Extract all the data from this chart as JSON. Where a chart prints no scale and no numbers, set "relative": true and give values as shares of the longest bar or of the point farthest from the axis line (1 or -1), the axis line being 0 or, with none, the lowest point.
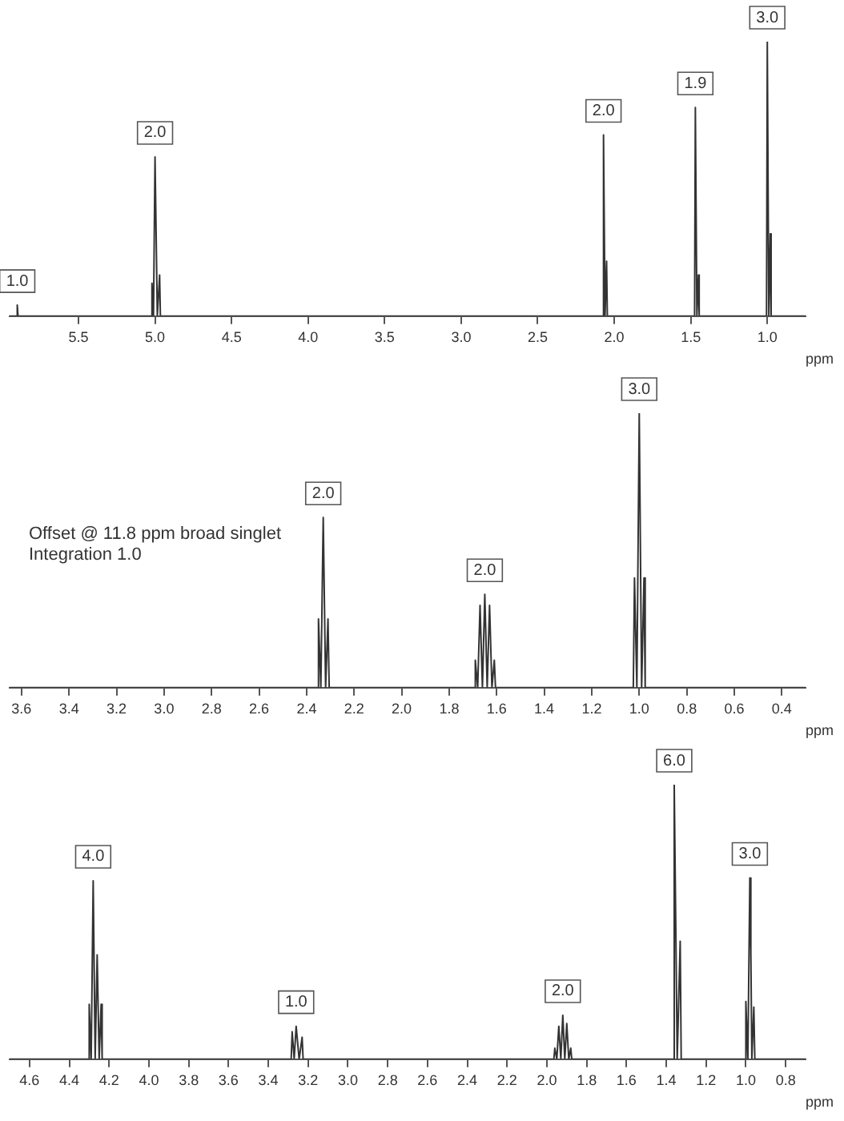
{
  "chart_data": [
    {
      "type": "line",
      "relative": true,
      "xlabel": "ppm",
      "xlim": [
        5.95,
        0.75
      ],
      "xticks": [
        5.5,
        {
          "value": 5,
          "label": "5.0"
        },
        4.5,
        {
          "value": 4,
          "label": "4.0"
        },
        3.5,
        {
          "value": 3,
          "label": "3.0"
        },
        2.5,
        {
          "value": 2,
          "label": "2.0"
        },
        1.5,
        {
          "value": 1,
          "label": "1.0"
        }
      ],
      "grid": false,
      "legend": false,
      "marker": "none",
      "line_style": "solid",
      "series": [
        {
          "color": "#333333",
          "x": [
            5.95,
            5.905,
            5.9,
            5.895,
            5.025,
            5.02,
            5.01,
            5.0,
            4.985,
            4.97,
            4.965,
            2.075,
            2.07,
            2.06,
            2.05,
            2.045,
            1.475,
            1.47,
            1.46,
            1.45,
            1.445,
            1.005,
            1.0,
            0.99,
            0.98,
            0.975,
            0.75
          ],
          "values": [
            0,
            0,
            0.04,
            0,
            0,
            0.12,
            0,
            0.58,
            0,
            0.15,
            0,
            0,
            0.66,
            0,
            0.2,
            0,
            0,
            0.76,
            0,
            0.15,
            0,
            0,
            1,
            0,
            0.3,
            0,
            0
          ]
        }
      ],
      "annotations": [
        {
          "text": "1.0",
          "x": 5.9,
          "y": 0.04
        },
        {
          "text": "2.0",
          "x": 5.0,
          "y": 0.58
        },
        {
          "text": "2.0",
          "x": 2.07,
          "y": 0.66
        },
        {
          "text": "1.9",
          "x": 1.47,
          "y": 0.76
        },
        {
          "text": "3.0",
          "x": 1.0,
          "y": 1
        }
      ]
    },
    {
      "type": "line",
      "relative": true,
      "xlabel": "ppm",
      "xlim": [
        3.65,
        0.3
      ],
      "xticks": [
        3.6,
        3.4,
        3.2,
        {
          "value": 3,
          "label": "3.0"
        },
        2.8,
        2.6,
        2.4,
        2.2,
        {
          "value": 2,
          "label": "2.0"
        },
        1.8,
        1.6,
        1.4,
        1.2,
        {
          "value": 1,
          "label": "1.0"
        },
        0.8,
        0.6,
        0.4
      ],
      "grid": false,
      "legend": false,
      "marker": "none",
      "line_style": "solid",
      "series": [
        {
          "color": "#333333",
          "x": [
            3.65,
            2.355,
            2.35,
            2.34,
            2.33,
            2.32,
            2.31,
            2.305,
            1.695,
            1.69,
            1.68,
            1.67,
            1.66,
            1.65,
            1.64,
            1.63,
            1.62,
            1.61,
            1.605,
            1.025,
            1.02,
            1.01,
            1.0,
            0.99,
            0.98,
            0.975,
            0.3
          ],
          "values": [
            0,
            0,
            0.25,
            0,
            0.62,
            0,
            0.25,
            0,
            0,
            0.1,
            0,
            0.3,
            0,
            0.34,
            0,
            0.3,
            0,
            0.1,
            0,
            0,
            0.4,
            0,
            1,
            0,
            0.4,
            0,
            0
          ]
        }
      ],
      "annotations": [
        "Offset @ 11.8 ppm broad singlet",
        "Integration 1.0",
        {
          "text": "2.0",
          "x": 2.33,
          "y": 0.62
        },
        {
          "text": "2.0",
          "x": 1.65,
          "y": 0.34
        },
        {
          "text": "3.0",
          "x": 1.0,
          "y": 1
        }
      ]
    },
    {
      "type": "line",
      "relative": true,
      "xlabel": "ppm",
      "xlim": [
        4.7,
        0.7
      ],
      "xticks": [
        4.6,
        4.4,
        4.2,
        {
          "value": 4,
          "label": "4.0"
        },
        3.8,
        3.6,
        3.4,
        3.2,
        {
          "value": 3,
          "label": "3.0"
        },
        2.8,
        2.6,
        2.4,
        2.2,
        {
          "value": 2,
          "label": "2.0"
        },
        1.8,
        1.6,
        1.4,
        1.2,
        {
          "value": 1,
          "label": "1.0"
        },
        0.8
      ],
      "grid": false,
      "legend": false,
      "marker": "none",
      "line_style": "solid",
      "series": [
        {
          "color": "#333333",
          "x": [
            4.7,
            4.305,
            4.3,
            4.29,
            4.28,
            4.27,
            4.26,
            4.25,
            4.24,
            4.235,
            3.285,
            3.28,
            3.27,
            3.26,
            3.245,
            3.23,
            3.225,
            1.965,
            1.96,
            1.95,
            1.94,
            1.93,
            1.92,
            1.91,
            1.9,
            1.89,
            1.88,
            1.875,
            1.365,
            1.36,
            1.345,
            1.33,
            1.325,
            1.005,
            1.0,
            0.99,
            0.98,
            0.975,
            0.97,
            0.96,
            0.955,
            0.7
          ],
          "values": [
            0,
            0,
            0.2,
            0,
            0.65,
            0,
            0.38,
            0,
            0.2,
            0,
            0,
            0.1,
            0,
            0.12,
            0,
            0.08,
            0,
            0,
            0.04,
            0,
            0.12,
            0,
            0.16,
            0,
            0.13,
            0,
            0.04,
            0,
            0,
            1,
            0,
            0.43,
            0,
            0,
            0.21,
            0,
            0.66,
            0.39,
            0,
            0.19,
            0,
            0
          ]
        }
      ],
      "annotations": [
        {
          "text": "4.0",
          "x": 4.28,
          "y": 0.65
        },
        {
          "text": "1.0",
          "x": 3.26,
          "y": 0.12
        },
        {
          "text": "2.0",
          "x": 1.92,
          "y": 0.16
        },
        {
          "text": "6.0",
          "x": 1.36,
          "y": 1
        },
        {
          "text": "3.0",
          "x": 0.98,
          "y": 0.66
        }
      ]
    }
  ]
}
